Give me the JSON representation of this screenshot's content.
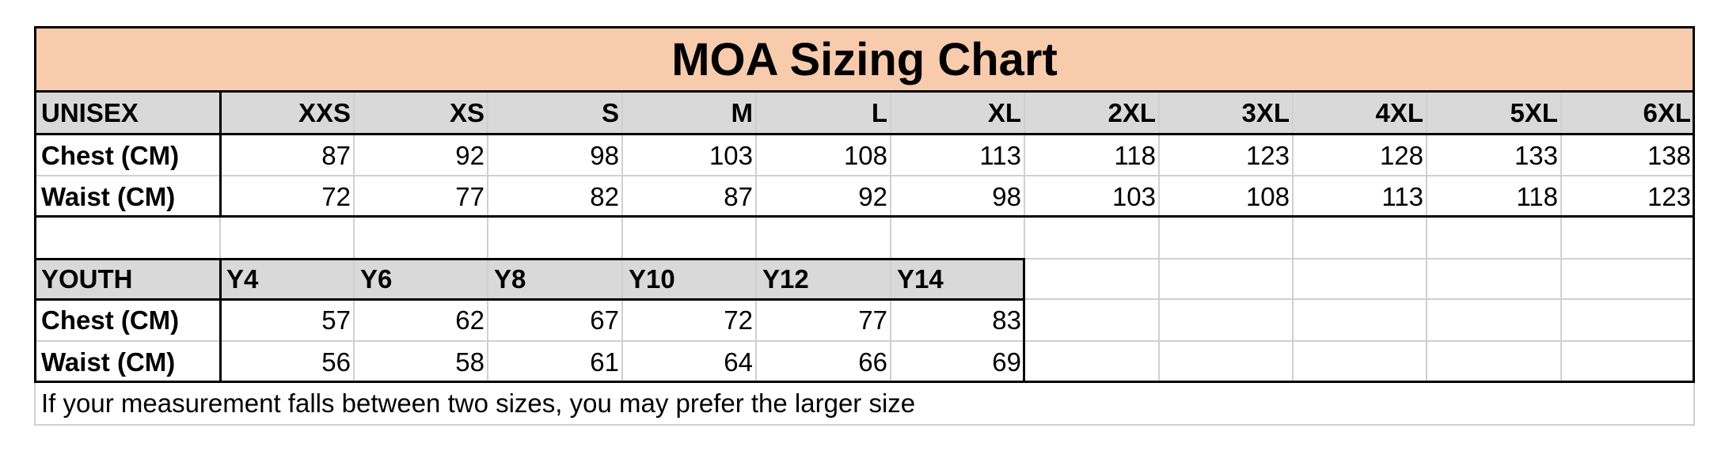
{
  "title": "MOA Sizing Chart",
  "unisex": {
    "header": "UNISEX",
    "sizes": [
      "XXS",
      "XS",
      "S",
      "M",
      "L",
      "XL",
      "2XL",
      "3XL",
      "4XL",
      "5XL",
      "6XL"
    ],
    "rows": [
      {
        "label": "Chest (CM)",
        "values": [
          "87",
          "92",
          "98",
          "103",
          "108",
          "113",
          "118",
          "123",
          "128",
          "133",
          "138"
        ]
      },
      {
        "label": "Waist (CM)",
        "values": [
          "72",
          "77",
          "82",
          "87",
          "92",
          "98",
          "103",
          "108",
          "113",
          "118",
          "123"
        ]
      }
    ]
  },
  "youth": {
    "header": "YOUTH",
    "sizes": [
      "Y4",
      "Y6",
      "Y8",
      "Y10",
      "Y12",
      "Y14"
    ],
    "rows": [
      {
        "label": "Chest (CM)",
        "values": [
          "57",
          "62",
          "67",
          "72",
          "77",
          "83"
        ]
      },
      {
        "label": "Waist (CM)",
        "values": [
          "56",
          "58",
          "61",
          "64",
          "66",
          "69"
        ]
      }
    ]
  },
  "note": "If your measurement falls between two sizes, you may prefer the larger size",
  "colors": {
    "title_bg": "#f8cbad",
    "header_bg": "#d9d9d9",
    "grid": "#d0d0d0",
    "border": "#000000"
  }
}
